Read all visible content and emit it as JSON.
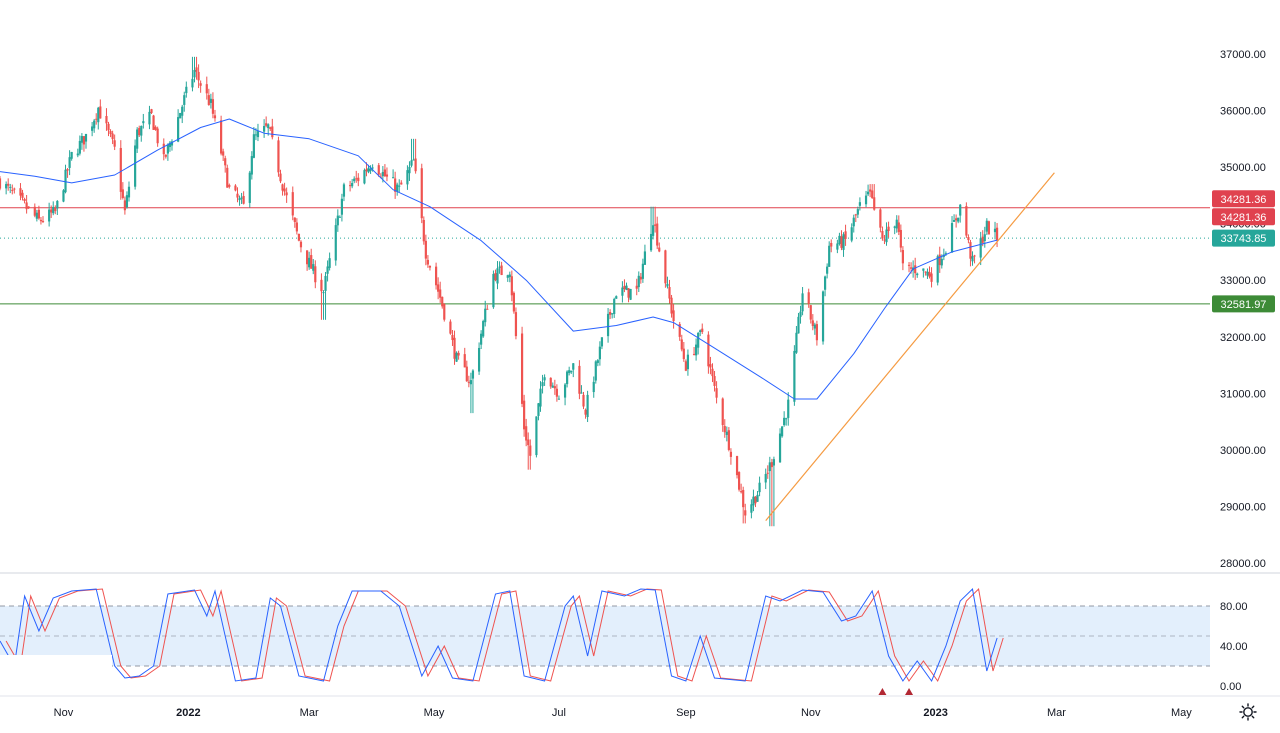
{
  "colors": {
    "up": "#26a69a",
    "down": "#ef5350",
    "ma": "#2962ff",
    "trendline": "#f59b42",
    "resistance": "#e0424f",
    "support": "#3d8b37",
    "current_tag": "#26a69a",
    "stoch_k": "#2962ff",
    "stoch_d": "#ef5350",
    "stoch_band": "#e3effc",
    "axis_text": "#131722",
    "signal_marker": "#b22833"
  },
  "chart_data": {
    "type": "candlestick",
    "price_axis": {
      "min": 28000,
      "max": 37000,
      "ticks": [
        "37000.00",
        "36000.00",
        "35000.00",
        "34000.00",
        "33000.00",
        "32000.00",
        "31000.00",
        "30000.00",
        "29000.00",
        "28000.00"
      ]
    },
    "time_axis": {
      "labels": [
        "Nov",
        "2022",
        "Mar",
        "May",
        "Jul",
        "Sep",
        "Nov",
        "2023",
        "Mar",
        "May"
      ],
      "label_dates": [
        "2021-11-01",
        "2022-01-01",
        "2022-03-01",
        "2022-05-01",
        "2022-07-01",
        "2022-09-01",
        "2022-11-01",
        "2023-01-01",
        "2023-03-01",
        "2023-05-01"
      ],
      "start": "2021-10-01",
      "end": "2023-05-15"
    },
    "close_path": [
      [
        "2021-10-01",
        34750
      ],
      [
        "2021-10-12",
        34350
      ],
      [
        "2021-10-20",
        34050
      ],
      [
        "2021-10-28",
        34200
      ],
      [
        "2021-11-05",
        35200
      ],
      [
        "2021-11-12",
        35550
      ],
      [
        "2021-11-18",
        36050
      ],
      [
        "2021-11-26",
        35300
      ],
      [
        "2021-12-01",
        34200
      ],
      [
        "2021-12-07",
        35600
      ],
      [
        "2021-12-14",
        35900
      ],
      [
        "2021-12-20",
        35100
      ],
      [
        "2021-12-30",
        36200
      ],
      [
        "2022-01-04",
        36700
      ],
      [
        "2022-01-12",
        36100
      ],
      [
        "2022-01-21",
        34600
      ],
      [
        "2022-01-28",
        34300
      ],
      [
        "2022-02-02",
        35500
      ],
      [
        "2022-02-09",
        35700
      ],
      [
        "2022-02-16",
        34700
      ],
      [
        "2022-02-24",
        33700
      ],
      [
        "2022-03-01",
        33300
      ],
      [
        "2022-03-08",
        32800
      ],
      [
        "2022-03-18",
        34600
      ],
      [
        "2022-03-25",
        34800
      ],
      [
        "2022-04-01",
        35100
      ],
      [
        "2022-04-08",
        34800
      ],
      [
        "2022-04-14",
        34600
      ],
      [
        "2022-04-21",
        35100
      ],
      [
        "2022-04-27",
        33500
      ],
      [
        "2022-05-04",
        32700
      ],
      [
        "2022-05-12",
        31600
      ],
      [
        "2022-05-19",
        31200
      ],
      [
        "2022-05-30",
        33100
      ],
      [
        "2022-06-07",
        33200
      ],
      [
        "2022-06-14",
        30400
      ],
      [
        "2022-06-17",
        29900
      ],
      [
        "2022-06-24",
        31400
      ],
      [
        "2022-07-01",
        31000
      ],
      [
        "2022-07-08",
        31500
      ],
      [
        "2022-07-14",
        30700
      ],
      [
        "2022-07-22",
        31900
      ],
      [
        "2022-07-29",
        32800
      ],
      [
        "2022-08-08",
        32800
      ],
      [
        "2022-08-16",
        34100
      ],
      [
        "2022-08-22",
        33000
      ],
      [
        "2022-08-26",
        32300
      ],
      [
        "2022-09-01",
        31500
      ],
      [
        "2022-09-09",
        32100
      ],
      [
        "2022-09-16",
        30900
      ],
      [
        "2022-09-23",
        30000
      ],
      [
        "2022-09-30",
        28900
      ],
      [
        "2022-10-07",
        29300
      ],
      [
        "2022-10-13",
        29800
      ],
      [
        "2022-10-21",
        30800
      ],
      [
        "2022-10-28",
        32800
      ],
      [
        "2022-11-04",
        32000
      ],
      [
        "2022-11-10",
        33600
      ],
      [
        "2022-11-18",
        33700
      ],
      [
        "2022-11-25",
        34300
      ],
      [
        "2022-11-30",
        34500
      ],
      [
        "2022-12-06",
        33700
      ],
      [
        "2022-12-13",
        34100
      ],
      [
        "2022-12-16",
        33200
      ],
      [
        "2022-12-23",
        33200
      ],
      [
        "2022-12-30",
        33100
      ],
      [
        "2023-01-06",
        33600
      ],
      [
        "2023-01-13",
        34300
      ],
      [
        "2023-01-19",
        33300
      ],
      [
        "2023-01-26",
        33950
      ],
      [
        "2023-01-31",
        33744
      ]
    ],
    "swing_extremes": [
      [
        "2022-01-04",
        36950
      ],
      [
        "2022-03-08",
        32300
      ],
      [
        "2022-04-21",
        35500
      ],
      [
        "2022-05-20",
        30650
      ],
      [
        "2022-06-17",
        29650
      ],
      [
        "2022-08-16",
        34300
      ],
      [
        "2022-09-30",
        28700
      ],
      [
        "2022-10-13",
        28650
      ],
      [
        "2022-12-01",
        34700
      ]
    ],
    "moving_average": [
      [
        "2021-10-01",
        34920
      ],
      [
        "2021-10-18",
        34840
      ],
      [
        "2021-11-05",
        34720
      ],
      [
        "2021-11-26",
        34860
      ],
      [
        "2021-12-17",
        35300
      ],
      [
        "2022-01-07",
        35700
      ],
      [
        "2022-01-21",
        35850
      ],
      [
        "2022-02-07",
        35600
      ],
      [
        "2022-03-01",
        35500
      ],
      [
        "2022-03-25",
        35200
      ],
      [
        "2022-04-11",
        34600
      ],
      [
        "2022-04-29",
        34300
      ],
      [
        "2022-05-24",
        33700
      ],
      [
        "2022-06-15",
        33000
      ],
      [
        "2022-07-08",
        32100
      ],
      [
        "2022-07-29",
        32200
      ],
      [
        "2022-08-16",
        32350
      ],
      [
        "2022-08-26",
        32250
      ],
      [
        "2022-09-15",
        31800
      ],
      [
        "2022-10-07",
        31300
      ],
      [
        "2022-10-24",
        30900
      ],
      [
        "2022-11-04",
        30900
      ],
      [
        "2022-11-22",
        31700
      ],
      [
        "2022-12-07",
        32500
      ],
      [
        "2022-12-21",
        33200
      ],
      [
        "2023-01-09",
        33500
      ],
      [
        "2023-01-31",
        33710
      ]
    ],
    "trendline": {
      "from": [
        "2022-10-10",
        28750
      ],
      "to": [
        "2023-02-28",
        34900
      ]
    },
    "levels": [
      {
        "value": 34281.36,
        "label": "34281.36",
        "style": "solid",
        "color": "resistance"
      },
      {
        "value": 32581.97,
        "label": "32581.97",
        "style": "solid",
        "color": "support"
      },
      {
        "value": 33743.85,
        "label": "33743.85",
        "style": "dotted",
        "color": "current_tag"
      }
    ],
    "price_tags": [
      {
        "label": "34281.36",
        "value": 34281.36,
        "color": "resistance",
        "stack": "above"
      },
      {
        "label": "34281.36",
        "value": 34281.36,
        "color": "resistance",
        "stack": "below"
      },
      {
        "label": "33743.85",
        "value": 33743.85,
        "color": "current_tag",
        "stack": "center"
      },
      {
        "label": "32581.97",
        "value": 32581.97,
        "color": "support",
        "stack": "center"
      }
    ],
    "stochastic": {
      "axis_ticks": [
        "80.00",
        "40.00",
        "0.00"
      ],
      "axis_tick_values": [
        80,
        40,
        0
      ],
      "band": [
        20,
        80
      ],
      "midline": 50,
      "k_path": [
        [
          "2021-10-01",
          45
        ],
        [
          "2021-10-08",
          20
        ],
        [
          "2021-10-13",
          90
        ],
        [
          "2021-10-20",
          55
        ],
        [
          "2021-10-27",
          88
        ],
        [
          "2021-11-05",
          95
        ],
        [
          "2021-11-17",
          97
        ],
        [
          "2021-11-26",
          20
        ],
        [
          "2021-12-01",
          8
        ],
        [
          "2021-12-08",
          10
        ],
        [
          "2021-12-15",
          20
        ],
        [
          "2021-12-22",
          92
        ],
        [
          "2022-01-04",
          96
        ],
        [
          "2022-01-10",
          70
        ],
        [
          "2022-01-14",
          95
        ],
        [
          "2022-01-24",
          5
        ],
        [
          "2022-02-03",
          8
        ],
        [
          "2022-02-10",
          88
        ],
        [
          "2022-02-15",
          80
        ],
        [
          "2022-02-24",
          10
        ],
        [
          "2022-03-08",
          5
        ],
        [
          "2022-03-15",
          60
        ],
        [
          "2022-03-22",
          95
        ],
        [
          "2022-04-05",
          95
        ],
        [
          "2022-04-14",
          80
        ],
        [
          "2022-04-25",
          10
        ],
        [
          "2022-05-03",
          40
        ],
        [
          "2022-05-10",
          8
        ],
        [
          "2022-05-20",
          5
        ],
        [
          "2022-05-31",
          92
        ],
        [
          "2022-06-07",
          95
        ],
        [
          "2022-06-14",
          10
        ],
        [
          "2022-06-24",
          5
        ],
        [
          "2022-07-04",
          80
        ],
        [
          "2022-07-08",
          90
        ],
        [
          "2022-07-15",
          30
        ],
        [
          "2022-07-22",
          95
        ],
        [
          "2022-08-02",
          90
        ],
        [
          "2022-08-10",
          97
        ],
        [
          "2022-08-17",
          96
        ],
        [
          "2022-08-25",
          10
        ],
        [
          "2022-09-01",
          5
        ],
        [
          "2022-09-08",
          50
        ],
        [
          "2022-09-15",
          8
        ],
        [
          "2022-09-30",
          5
        ],
        [
          "2022-10-10",
          90
        ],
        [
          "2022-10-17",
          85
        ],
        [
          "2022-10-28",
          96
        ],
        [
          "2022-11-07",
          94
        ],
        [
          "2022-11-16",
          65
        ],
        [
          "2022-11-23",
          70
        ],
        [
          "2022-12-01",
          95
        ],
        [
          "2022-12-09",
          30
        ],
        [
          "2022-12-16",
          5
        ],
        [
          "2022-12-23",
          25
        ],
        [
          "2022-12-30",
          5
        ],
        [
          "2023-01-06",
          40
        ],
        [
          "2023-01-13",
          85
        ],
        [
          "2023-01-19",
          97
        ],
        [
          "2023-01-26",
          15
        ],
        [
          "2023-01-31",
          48
        ]
      ],
      "d_lag_days": 3,
      "signal_markers": [
        [
          "2022-12-06",
          0
        ],
        [
          "2022-12-19",
          0
        ]
      ]
    }
  }
}
